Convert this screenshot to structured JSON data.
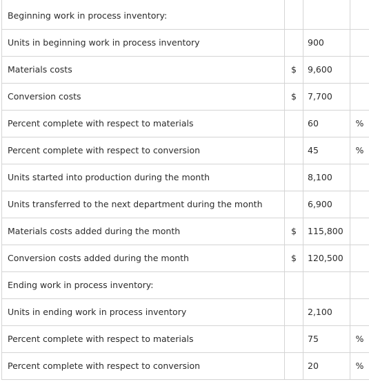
{
  "table": {
    "rows": [
      {
        "label": "Beginning work in process inventory:"
      },
      {
        "label": "Units in beginning work in process inventory",
        "value": "900"
      },
      {
        "label": "Materials costs",
        "currency": "$",
        "value": "9,600"
      },
      {
        "label": "Conversion costs",
        "currency": "$",
        "value": "7,700"
      },
      {
        "label": "Percent complete with respect to materials",
        "value": "60",
        "unit": "%"
      },
      {
        "label": "Percent complete with respect to conversion",
        "value": "45",
        "unit": "%"
      },
      {
        "label": "Units started into production during the month",
        "value": "8,100"
      },
      {
        "label": "Units transferred to the next department during the month",
        "value": "6,900"
      },
      {
        "label": "Materials costs added during the month",
        "currency": "$",
        "value": "115,800"
      },
      {
        "label": "Conversion costs added during the month",
        "currency": "$",
        "value": "120,500"
      },
      {
        "label": "Ending work in process inventory:"
      },
      {
        "label": "Units in ending work in process inventory",
        "value": "2,100"
      },
      {
        "label": "Percent complete with respect to materials",
        "value": "75",
        "unit": "%"
      },
      {
        "label": "Percent complete with respect to conversion",
        "value": "20",
        "unit": "%"
      }
    ]
  }
}
